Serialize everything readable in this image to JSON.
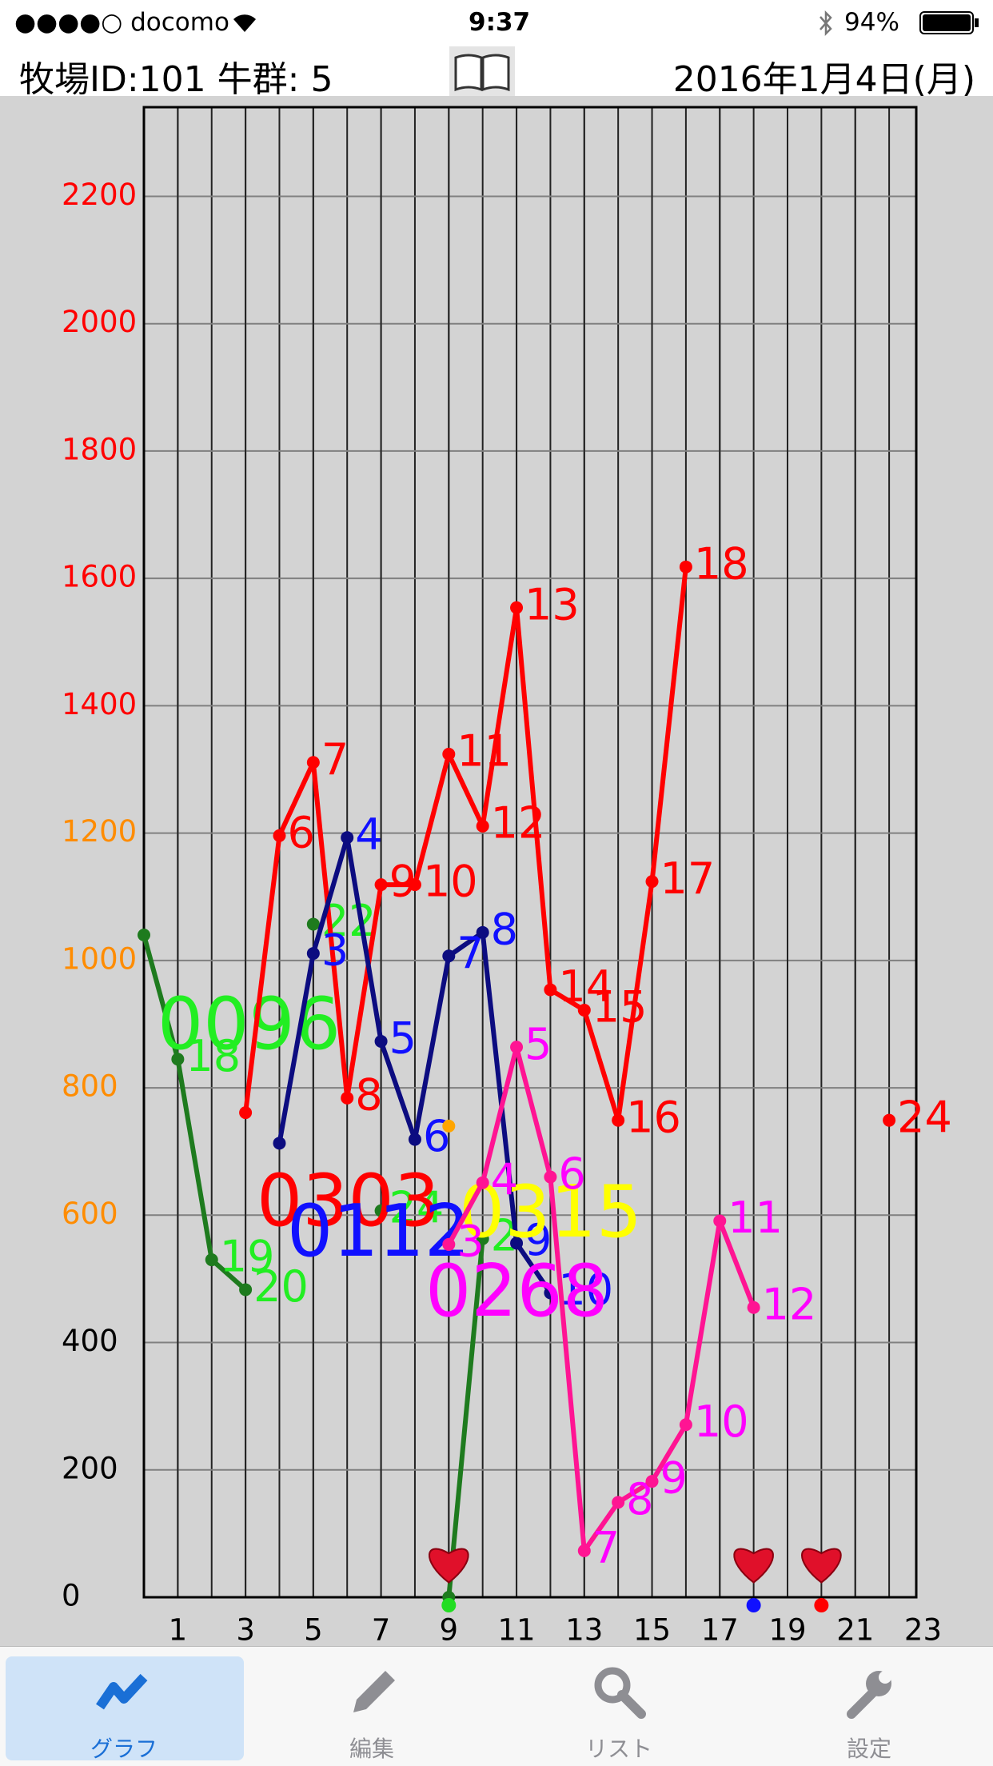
{
  "status_bar": {
    "carrier": "●●●●○ docomo",
    "time": "9:37",
    "battery": "94%"
  },
  "header": {
    "title": "牧場ID:101 牛群: 5",
    "date": "2016年1月4日(月)"
  },
  "chart_data": {
    "type": "line",
    "xlim": [
      0,
      22.8
    ],
    "xticks": [
      1,
      3,
      5,
      7,
      9,
      11,
      13,
      15,
      17,
      19,
      21,
      23
    ],
    "ylim": [
      0,
      2340
    ],
    "yticks": [
      0,
      200,
      400,
      600,
      800,
      1000,
      1200,
      1400,
      1600,
      1800,
      2000,
      2200
    ],
    "ytick_colors": [
      "#000000",
      "#000000",
      "#000000",
      "#ff8c00",
      "#ff8c00",
      "#ff8c00",
      "#ff8c00",
      "#ff0000",
      "#ff0000",
      "#ff0000",
      "#ff0000",
      "#ff0000"
    ],
    "grid": true,
    "series": [
      {
        "name": "0096",
        "color": "#1e7b1e",
        "label_color": "#22ee22",
        "x": [
          0,
          1,
          2,
          3,
          4,
          5,
          6,
          7,
          8,
          9,
          10
        ],
        "values": [
          1040,
          845,
          530,
          483,
          null,
          1057,
          null,
          607,
          null,
          0,
          563
        ],
        "point_labels": [
          null,
          "18",
          "19",
          "20",
          null,
          "22",
          null,
          "24",
          null,
          null,
          "2"
        ]
      },
      {
        "name": "0303",
        "color": "#ff0000",
        "label_color": "#ff0000",
        "x": [
          3,
          4,
          5,
          6,
          7,
          8,
          9,
          10,
          11,
          12,
          13,
          14,
          15,
          16,
          17,
          18,
          19,
          20,
          21,
          22
        ],
        "values": [
          761,
          1196,
          1311,
          784,
          1119,
          1119,
          1324,
          1211,
          1554,
          954,
          922,
          749,
          1124,
          1618,
          null,
          null,
          null,
          null,
          null,
          749
        ],
        "point_labels": [
          null,
          "6",
          "7",
          "8",
          "9",
          "10",
          "11",
          "12",
          "13",
          "14",
          "15",
          "16",
          "17",
          "18",
          null,
          null,
          null,
          null,
          null,
          "24"
        ]
      },
      {
        "name": "0112",
        "color": "#0c0c80",
        "label_color": "#1010ff",
        "x": [
          4,
          5,
          6,
          7,
          8,
          9,
          10,
          11,
          12
        ],
        "values": [
          713,
          1011,
          1193,
          873,
          719,
          1007,
          1044,
          556,
          478
        ],
        "point_labels": [
          null,
          "3",
          "4",
          "5",
          "6",
          "7",
          "8",
          "9",
          "10"
        ]
      },
      {
        "name": "0315",
        "color": "#ffa500",
        "label_color": "#ffff00",
        "x": [
          9
        ],
        "values": [
          740
        ],
        "point_labels": [
          null
        ]
      },
      {
        "name": "0268",
        "color": "#ff1493",
        "label_color": "#ff00ff",
        "x": [
          9,
          10,
          11,
          12,
          13,
          14,
          15,
          16,
          17,
          18
        ],
        "values": [
          554,
          651,
          864,
          660,
          73,
          149,
          182,
          271,
          591,
          455
        ],
        "point_labels": [
          "3",
          "4",
          "5",
          "6",
          "7",
          "8",
          "9",
          "10",
          "11",
          "12"
        ]
      }
    ],
    "events": [
      {
        "x": 9,
        "color": "#22dd22"
      },
      {
        "x": 18,
        "color": "#1010ff"
      },
      {
        "x": 20,
        "color": "#ff0000"
      }
    ]
  },
  "tabs": [
    "グラフ",
    "編集",
    "リスト",
    "設定"
  ]
}
